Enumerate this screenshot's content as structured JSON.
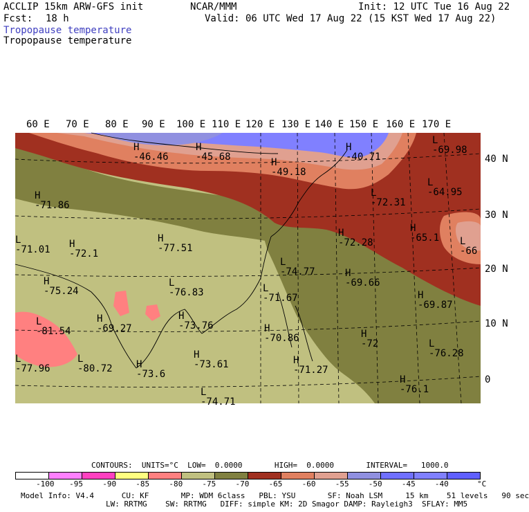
{
  "header": {
    "model_title": "ACCLIP 15km ARW-GFS init",
    "org": "NCAR/MMM",
    "init": "Init: 12 UTC Tue 16 Aug 22",
    "fcst_label": "Fcst:",
    "fcst_value": "18 h",
    "valid": "Valid: 06 UTC Wed 17 Aug 22 (15 KST Wed 17 Aug 22)",
    "field_title_1": "Tropopause temperature",
    "field_title_2": "Tropopause temperature"
  },
  "map": {
    "longitude_labels": [
      "60 E",
      "70 E",
      "80 E",
      "90 E",
      "100 E",
      "110 E",
      "120 E",
      "130 E",
      "140 E",
      "150 E",
      "160 E",
      "170 E"
    ],
    "latitude_labels": [
      "40 N",
      "30 N",
      "20 N",
      "10 N",
      "0"
    ],
    "markers": [
      {
        "type": "H",
        "value": "-46.46"
      },
      {
        "type": "H",
        "value": "-45.68"
      },
      {
        "type": "H",
        "value": "-49.18"
      },
      {
        "type": "H",
        "value": "-40.71"
      },
      {
        "type": "L",
        "value": "-69.98"
      },
      {
        "type": "L",
        "value": "-64.95"
      },
      {
        "type": "H",
        "value": "-71.86"
      },
      {
        "type": "L",
        "value": "-72.31"
      },
      {
        "type": "H",
        "value": "-65.1"
      },
      {
        "type": "L",
        "value": "-66"
      },
      {
        "type": "H",
        "value": "-77.51"
      },
      {
        "type": "H",
        "value": "-72.1"
      },
      {
        "type": "H",
        "value": "-72.28"
      },
      {
        "type": "L",
        "value": "-74.77"
      },
      {
        "type": "H",
        "value": "-75.24"
      },
      {
        "type": "H",
        "value": "-69.66"
      },
      {
        "type": "L",
        "value": "-76.83"
      },
      {
        "type": "L",
        "value": "-71.67"
      },
      {
        "type": "H",
        "value": "-69.87"
      },
      {
        "type": "L",
        "value": "-81.54"
      },
      {
        "type": "H",
        "value": "-69.27"
      },
      {
        "type": "H",
        "value": "-73.76"
      },
      {
        "type": "H",
        "value": "-70.86"
      },
      {
        "type": "H",
        "value": "-72"
      },
      {
        "type": "L",
        "value": "-76.28"
      },
      {
        "type": "L",
        "value": "-80.72"
      },
      {
        "type": "H",
        "value": "-73.61"
      },
      {
        "type": "H",
        "value": "-71.27"
      },
      {
        "type": "H",
        "value": "-76.1"
      },
      {
        "type": "L",
        "value": "-77.96"
      },
      {
        "type": "H",
        "value": "-73.6"
      },
      {
        "type": "L",
        "value": "-74.71"
      },
      {
        "type": "L",
        "value": "-71.01"
      }
    ]
  },
  "contours_line": "CONTOURS:  UNITS=°C  LOW=  0.0000       HIGH=  0.0000       INTERVAL=   1000.0",
  "colorbar": {
    "colors": [
      "#ffffff",
      "#ff80ff",
      "#ff40c0",
      "#ffff80",
      "#ff8080",
      "#c0c080",
      "#808040",
      "#a03020",
      "#e08060",
      "#e0a090",
      "#9090e0",
      "#7070ff",
      "#8080ff",
      "#6060ff"
    ],
    "tick_labels": [
      "-100",
      "-95",
      "-90",
      "-85",
      "-80",
      "-75",
      "-70",
      "-65",
      "-60",
      "-55",
      "-50",
      "-45",
      "-40"
    ],
    "unit": "°C"
  },
  "footer": {
    "line1": "Model Info: V4.4      CU: KF       MP: WDM 6class   PBL: YSU       SF: Noah LSM     15 km    51 levels   90 sec",
    "line2": "LW: RRTMG    SW: RRTMG   DIFF: simple KM: 2D Smagor DAMP: Rayleigh3  SFLAY: MM5"
  }
}
